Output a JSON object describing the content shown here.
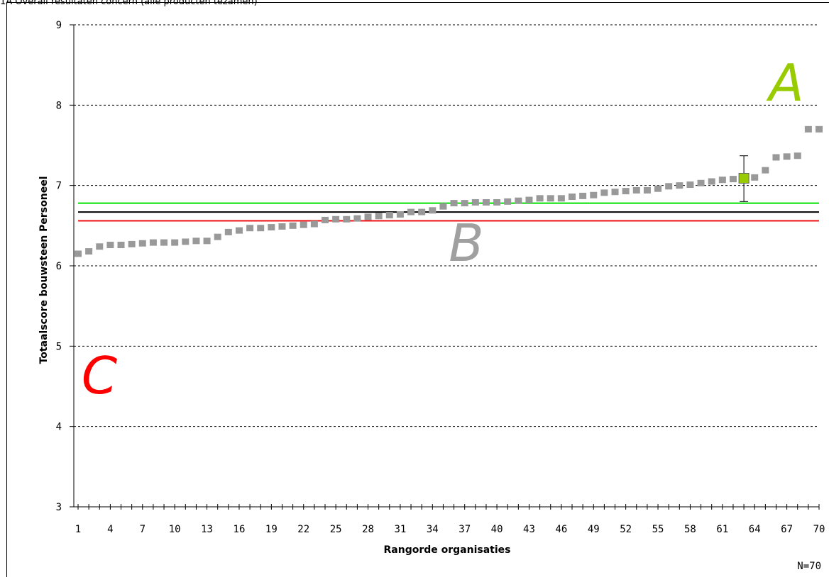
{
  "caption": "1A Overall resultaten concern (alle producten tezamen)",
  "chart_data": {
    "type": "scatter",
    "title": "",
    "xlabel": "Rangorde organisaties",
    "ylabel": "Totaalscore bouwsteen Personeel",
    "xlim": [
      1,
      70
    ],
    "ylim": [
      3,
      9
    ],
    "yticks": [
      3,
      4,
      5,
      6,
      7,
      8,
      9
    ],
    "xticks": [
      1,
      4,
      7,
      10,
      13,
      16,
      19,
      22,
      25,
      28,
      31,
      34,
      37,
      40,
      43,
      46,
      49,
      52,
      55,
      58,
      61,
      64,
      67,
      70
    ],
    "grid": "horizontal dashed",
    "note": "N=70",
    "zone_labels": [
      {
        "text": "A",
        "color": "#99cc00"
      },
      {
        "text": "B",
        "color": "#a0a0a0"
      },
      {
        "text": "C",
        "color": "#ff0000"
      }
    ],
    "reference_lines": [
      {
        "value": 6.78,
        "color": "#00e000"
      },
      {
        "value": 6.67,
        "color": "#000000"
      },
      {
        "value": 6.56,
        "color": "#ee1111"
      }
    ],
    "series": [
      {
        "marker_color": "#999999",
        "x": [
          1,
          2,
          3,
          4,
          5,
          6,
          7,
          8,
          9,
          10,
          11,
          12,
          13,
          14,
          15,
          16,
          17,
          18,
          19,
          20,
          21,
          22,
          23,
          24,
          25,
          26,
          27,
          28,
          29,
          30,
          31,
          32,
          33,
          34,
          35,
          36,
          37,
          38,
          39,
          40,
          41,
          42,
          43,
          44,
          45,
          46,
          47,
          48,
          49,
          50,
          51,
          52,
          53,
          54,
          55,
          56,
          57,
          58,
          59,
          60,
          61,
          62,
          63,
          64,
          65,
          66,
          67,
          68,
          69,
          70
        ],
        "y": [
          6.15,
          6.18,
          6.24,
          6.26,
          6.26,
          6.27,
          6.28,
          6.29,
          6.29,
          6.29,
          6.3,
          6.31,
          6.31,
          6.36,
          6.42,
          6.44,
          6.47,
          6.47,
          6.48,
          6.49,
          6.5,
          6.51,
          6.52,
          6.57,
          6.58,
          6.58,
          6.59,
          6.61,
          6.62,
          6.63,
          6.64,
          6.67,
          6.67,
          6.69,
          6.74,
          6.78,
          6.78,
          6.79,
          6.79,
          6.79,
          6.8,
          6.81,
          6.82,
          6.84,
          6.84,
          6.84,
          6.86,
          6.87,
          6.88,
          6.91,
          6.92,
          6.93,
          6.94,
          6.94,
          6.96,
          6.99,
          7.0,
          7.01,
          7.03,
          7.05,
          7.07,
          7.08,
          7.08,
          7.1,
          7.19,
          7.35,
          7.36,
          7.37,
          7.7,
          7.7
        ]
      }
    ],
    "highlight": {
      "x": 63,
      "y": 7.09,
      "error_low": 6.8,
      "error_high": 7.37,
      "color": "#99cc00"
    }
  }
}
